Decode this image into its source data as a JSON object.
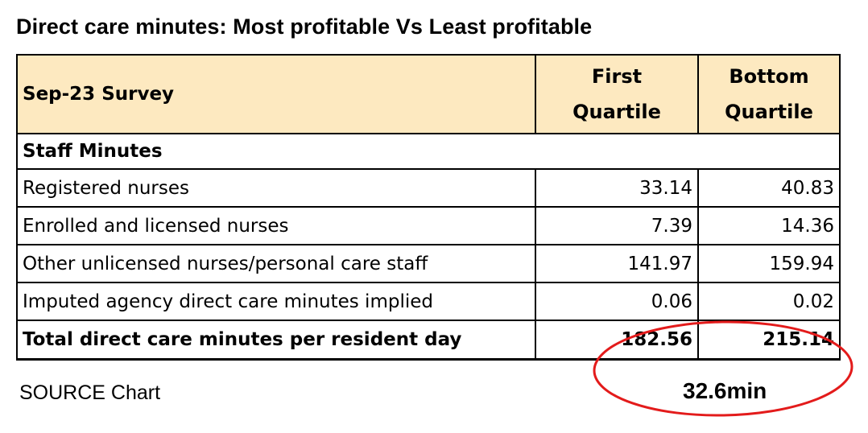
{
  "title": "Direct care minutes: Most profitable Vs Least profitable",
  "source": "SOURCE Chart",
  "difference_label": "32.6min",
  "highlight_color": "#e31b1b",
  "header_fill": "#fde9c0",
  "chart_data": {
    "type": "table",
    "title": "Direct care minutes: Most profitable Vs Least profitable",
    "header": {
      "label": "Sep-23 Survey",
      "columns": [
        {
          "line1": "First",
          "line2": "Quartile"
        },
        {
          "line1": "Bottom",
          "line2": "Quartile"
        }
      ]
    },
    "section": "Staff Minutes",
    "rows": [
      {
        "label": "Registered nurses",
        "first": "33.14",
        "bottom": "40.83"
      },
      {
        "label": "Enrolled and licensed nurses",
        "first": "7.39",
        "bottom": "14.36"
      },
      {
        "label": "Other unlicensed nurses/personal care staff",
        "first": "141.97",
        "bottom": "159.94"
      },
      {
        "label": "Imputed agency direct care minutes implied",
        "first": "0.06",
        "bottom": "0.02"
      }
    ],
    "total": {
      "label": "Total direct care minutes per resident day",
      "first": "182.56",
      "bottom": "215.14"
    }
  }
}
